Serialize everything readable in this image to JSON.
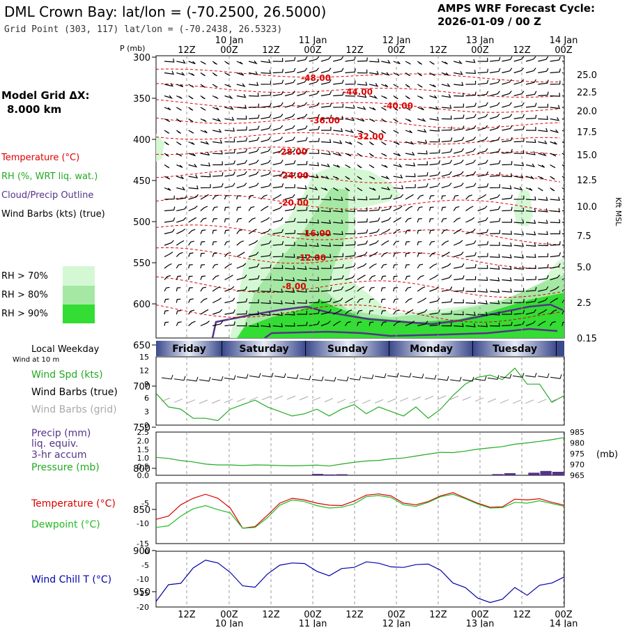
{
  "header": {
    "title": "DML Crown Bay:  lat/lon = (-70.2500, 26.5000)",
    "subtitle": "Grid Point (303, 117) lat/lon = (-70.2438, 26.5323)",
    "cycle_label": "AMPS WRF Forecast Cycle:",
    "cycle_value": "2026-01-09 / 00  Z"
  },
  "model_grid": {
    "label": "Model Grid ΔX:",
    "value": "8.000 km"
  },
  "legend": {
    "temperature": "Temperature (°C)",
    "rh": "RH (%, WRT liq. wat.)",
    "cloud": "Cloud/Precip Outline",
    "wind": "Wind Barbs (kts) (true)",
    "rh70": "RH > 70%",
    "rh80": "RH > 80%",
    "rh90": "RH > 90%"
  },
  "colors": {
    "temperature": "#dd0000",
    "rh": "#22aa22",
    "cloud": "#553388",
    "wind": "#000000",
    "wind_grid": "#aaaaaa",
    "precip": "#553388",
    "dewpoint": "#22bb22",
    "windchill": "#0000aa",
    "rh70": "#d4f8d4",
    "rh80": "#a4e8a4",
    "rh90": "#33dd33"
  },
  "time_axis": {
    "tick_labels": [
      "12Z",
      "00Z",
      "12Z",
      "00Z",
      "12Z",
      "00Z",
      "12Z",
      "00Z",
      "12Z",
      "00Z"
    ],
    "date_labels": [
      "10 Jan",
      "11 Jan",
      "12 Jan",
      "13 Jan",
      "14 Jan"
    ]
  },
  "weekdays": {
    "title": "Local Weekday",
    "subtitle": "Wind at 10 m",
    "days": [
      "Friday",
      "Saturday",
      "Sunday",
      "Monday",
      "Tuesday"
    ]
  },
  "chart_data": [
    {
      "type": "contour",
      "title": "Vertical time section",
      "ylabel_left": "P (mb)",
      "ylabel_right": "Kft MSL",
      "pressure_ticks": [
        "300",
        "350",
        "400",
        "450",
        "500",
        "550",
        "600",
        "650",
        "700",
        "750",
        "800",
        "850",
        "900",
        "950"
      ],
      "height_ticks": [
        "25.0",
        "22.5",
        "20.0",
        "17.5",
        "15.0",
        "12.5",
        "10.0",
        "7.5",
        "5.0",
        "2.5",
        "0.15"
      ],
      "temperature_contours": [
        "-48.00",
        "-44.00",
        "-40.00",
        "-36.00",
        "-32.00",
        "-28.00",
        "-24.00",
        "-20.00",
        "-16.00",
        "-12.00",
        "-8.00"
      ]
    },
    {
      "type": "line",
      "title": "Wind",
      "legend": [
        "Wind Spd (kts)",
        "Wind Barbs (true)",
        "Wind Barbs (grid)"
      ],
      "y_ticks": [
        "15",
        "12",
        "9",
        "6",
        "3",
        "0"
      ],
      "ylim": [
        0,
        15
      ],
      "series": [
        {
          "name": "Wind Spd (kts)",
          "values": [
            7,
            4,
            3.5,
            1.5,
            1.5,
            1,
            3.5,
            4.5,
            5.5,
            4,
            3,
            2,
            2.5,
            3.5,
            2,
            3.5,
            4.5,
            2.5,
            4,
            3,
            2,
            4,
            1.5,
            3.5,
            6.5,
            9,
            10.5,
            11,
            10,
            12.5,
            9,
            9,
            5,
            6.5
          ]
        }
      ]
    },
    {
      "type": "line",
      "title": "Precip / Pressure",
      "legend": [
        "Precip (mm)",
        "liq. equiv.",
        "3-hr accum",
        "Pressure (mb)"
      ],
      "y_ticks_left": [
        "2.5",
        "2.0",
        "1.5",
        "1.0",
        "0.5",
        "0.0"
      ],
      "y_ticks_right": [
        "985",
        "980",
        "975",
        "970",
        "965"
      ],
      "unit_right": "(mb)",
      "ylim_left": [
        0,
        2.5
      ],
      "ylim_right": [
        965,
        985
      ],
      "series": [
        {
          "name": "Pressure (mb)",
          "values": [
            973.3,
            972.8,
            971.8,
            971.2,
            970.2,
            969.8,
            969.8,
            969.5,
            969.8,
            969.7,
            969.5,
            969.4,
            969.5,
            969.7,
            969.3,
            970.2,
            971.0,
            971.6,
            971.9,
            972.6,
            973.0,
            973.9,
            974.8,
            975.6,
            975.5,
            976.2,
            977.1,
            977.7,
            978.3,
            979.4,
            980.0,
            980.7,
            981.5,
            982.5
          ]
        },
        {
          "name": "Precip (mm)",
          "values": [
            0,
            0,
            0,
            0,
            0,
            0,
            0,
            0,
            0,
            0,
            0,
            0,
            0,
            0.08,
            0.05,
            0.06,
            0,
            0,
            0,
            0,
            0,
            0,
            0,
            0,
            0,
            0,
            0,
            0,
            0.07,
            0.12,
            0,
            0.15,
            0.25,
            0.2
          ]
        }
      ]
    },
    {
      "type": "line",
      "title": "Temperature / Dewpoint",
      "legend": [
        "Temperature (°C)",
        "Dewpoint (°C)"
      ],
      "y_ticks": [
        "-5",
        "-10",
        "-15"
      ],
      "ylim": [
        -15,
        0
      ],
      "series": [
        {
          "name": "Temperature (°C)",
          "values": [
            -9.0,
            -8.2,
            -5.4,
            -3.8,
            -2.8,
            -3.8,
            -6.2,
            -11.2,
            -10.8,
            -8.0,
            -5.0,
            -3.8,
            -4.2,
            -5.0,
            -5.5,
            -5.6,
            -4.5,
            -3.0,
            -2.7,
            -3.2,
            -5.0,
            -5.4,
            -4.6,
            -3.2,
            -2.4,
            -3.7,
            -5.0,
            -6.0,
            -5.9,
            -4.0,
            -4.2,
            -3.9,
            -4.8,
            -5.5
          ]
        },
        {
          "name": "Dewpoint (°C)",
          "values": [
            -11.0,
            -10.6,
            -8.2,
            -6.4,
            -5.6,
            -6.6,
            -7.4,
            -11.2,
            -11.0,
            -8.6,
            -5.5,
            -4.2,
            -4.6,
            -5.6,
            -6.2,
            -6.0,
            -5.2,
            -3.4,
            -3.1,
            -3.6,
            -5.4,
            -5.8,
            -4.8,
            -3.4,
            -2.8,
            -3.9,
            -5.2,
            -6.2,
            -6.1,
            -4.8,
            -5.0,
            -4.4,
            -5.1,
            -5.8
          ]
        }
      ]
    },
    {
      "type": "line",
      "title": "Wind Chill",
      "legend": [
        "Wind Chill T (°C)"
      ],
      "y_ticks": [
        "0",
        "-5",
        "-10",
        "-15",
        "-20"
      ],
      "ylim": [
        -20,
        0
      ],
      "series": [
        {
          "name": "Wind Chill T (°C)",
          "values": [
            -18.0,
            -12.0,
            -11.5,
            -6.0,
            -3.2,
            -4.2,
            -7.6,
            -12.4,
            -12.9,
            -8.2,
            -5.0,
            -4.2,
            -4.4,
            -7.2,
            -8.8,
            -6.2,
            -5.8,
            -3.8,
            -4.3,
            -5.6,
            -5.8,
            -4.8,
            -4.6,
            -6.8,
            -11.4,
            -13.0,
            -16.8,
            -18.4,
            -17.2,
            -13.0,
            -15.8,
            -12.2,
            -11.4,
            -9.2
          ]
        }
      ]
    }
  ]
}
